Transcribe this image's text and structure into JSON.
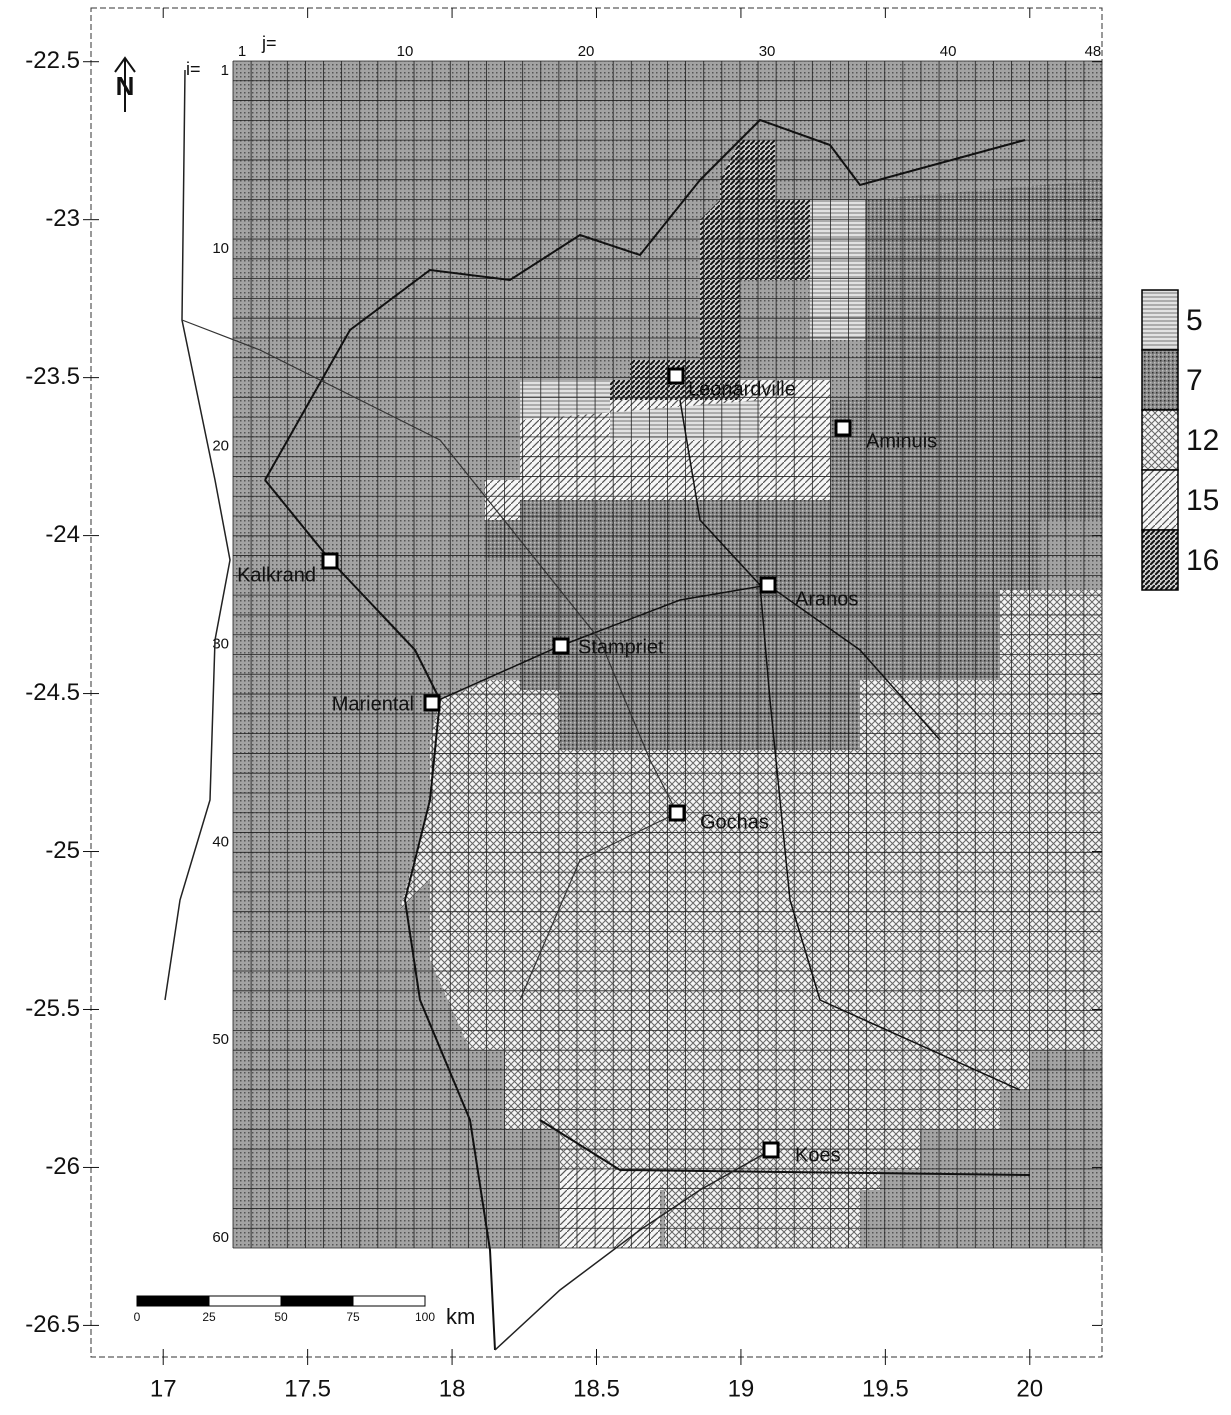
{
  "map": {
    "xlim": [
      16.75,
      20.25
    ],
    "ylim": [
      -26.6,
      -22.33
    ],
    "xticks": [
      17,
      17.5,
      18,
      18.5,
      19,
      19.5,
      20
    ],
    "yticks": [
      -22.5,
      -23,
      -23.5,
      -24,
      -24.5,
      -25,
      -25.5,
      -26,
      -26.5
    ],
    "grid": {
      "j_label": "j=",
      "i_label": "i=",
      "j_ticks": [
        1,
        10,
        20,
        30,
        40,
        48
      ],
      "i_ticks": [
        1,
        10,
        20,
        30,
        40,
        50,
        60
      ]
    },
    "legend": {
      "values": [
        5,
        7,
        12,
        15,
        16
      ]
    },
    "towns": [
      "Leonardville",
      "Aminuis",
      "Aranos",
      "Stampriet",
      "Kalkrand",
      "Mariental",
      "Gochas",
      "Koes"
    ],
    "scale_bar": {
      "ticks": [
        0,
        25,
        50,
        75,
        100
      ],
      "unit": "km"
    },
    "north": "N"
  }
}
